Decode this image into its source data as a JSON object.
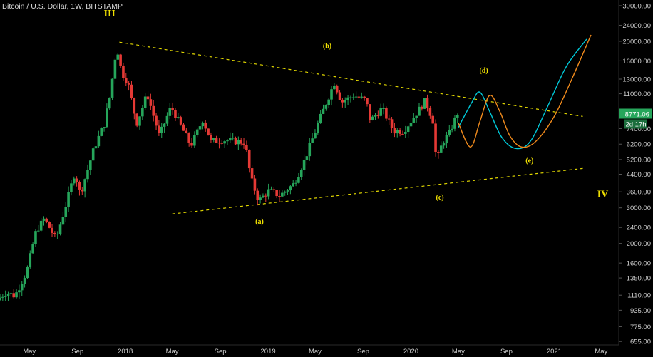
{
  "header": {
    "title": "Bitcoin / U.S. Dollar, 1W, BITSTAMP"
  },
  "colors": {
    "background": "#000000",
    "candle_up": "#26a65b",
    "candle_down": "#e53935",
    "trendline": "#e0d600",
    "wave_label": "#f0e000",
    "projection_cyan": "#00c8d8",
    "projection_orange": "#f08a1c",
    "price_badge": "#26a65b"
  },
  "price_badge": {
    "price": "8771.06",
    "countdown": "2d 17h"
  },
  "chart_data": {
    "type": "candlestick",
    "title": "Bitcoin / U.S. Dollar, 1W, BITSTAMP",
    "y_scale": "log",
    "ylim": [
      630,
      32000
    ],
    "xlim": [
      "2017-02-15",
      "2021-06-15"
    ],
    "x_ticks": [
      {
        "date": "2017-05-01",
        "label": "May"
      },
      {
        "date": "2017-09-01",
        "label": "Sep"
      },
      {
        "date": "2018-01-01",
        "label": "2018"
      },
      {
        "date": "2018-05-01",
        "label": "May"
      },
      {
        "date": "2018-09-01",
        "label": "Sep"
      },
      {
        "date": "2019-01-01",
        "label": "2019"
      },
      {
        "date": "2019-05-01",
        "label": "May"
      },
      {
        "date": "2019-09-01",
        "label": "Sep"
      },
      {
        "date": "2020-01-01",
        "label": "2020"
      },
      {
        "date": "2020-05-01",
        "label": "May"
      },
      {
        "date": "2020-09-01",
        "label": "Sep"
      },
      {
        "date": "2021-01-01",
        "label": "2021"
      },
      {
        "date": "2021-05-01",
        "label": "May"
      }
    ],
    "y_ticks": [
      "30000.00",
      "24000.00",
      "20000.00",
      "16000.00",
      "13000.00",
      "11000.00",
      "7400.00",
      "6200.00",
      "5200.00",
      "4400.00",
      "3600.00",
      "3000.00",
      "2400.00",
      "2000.00",
      "1600.00",
      "1350.00",
      "1110.00",
      "935.00",
      "775.00",
      "655.00"
    ],
    "price_path": [
      {
        "x": "2017-02-15",
        "y": 1050
      },
      {
        "x": "2017-03-10",
        "y": 1150
      },
      {
        "x": "2017-04-01",
        "y": 1100
      },
      {
        "x": "2017-05-01",
        "y": 1450
      },
      {
        "x": "2017-05-25",
        "y": 2300
      },
      {
        "x": "2017-06-15",
        "y": 2650
      },
      {
        "x": "2017-07-15",
        "y": 2100
      },
      {
        "x": "2017-08-05",
        "y": 2900
      },
      {
        "x": "2017-09-01",
        "y": 4500
      },
      {
        "x": "2017-09-15",
        "y": 3500
      },
      {
        "x": "2017-10-20",
        "y": 5900
      },
      {
        "x": "2017-11-15",
        "y": 7800
      },
      {
        "x": "2017-12-01",
        "y": 11000
      },
      {
        "x": "2017-12-17",
        "y": 19000
      },
      {
        "x": "2017-12-30",
        "y": 14000
      },
      {
        "x": "2018-01-15",
        "y": 12500
      },
      {
        "x": "2018-02-06",
        "y": 7800
      },
      {
        "x": "2018-03-05",
        "y": 11000
      },
      {
        "x": "2018-04-05",
        "y": 6800
      },
      {
        "x": "2018-05-05",
        "y": 9500
      },
      {
        "x": "2018-06-25",
        "y": 6100
      },
      {
        "x": "2018-07-25",
        "y": 8200
      },
      {
        "x": "2018-08-15",
        "y": 6400
      },
      {
        "x": "2018-09-15",
        "y": 6500
      },
      {
        "x": "2018-10-20",
        "y": 6400
      },
      {
        "x": "2018-11-10",
        "y": 6300
      },
      {
        "x": "2018-11-25",
        "y": 4200
      },
      {
        "x": "2018-12-15",
        "y": 3250
      },
      {
        "x": "2019-01-10",
        "y": 3650
      },
      {
        "x": "2019-02-07",
        "y": 3450
      },
      {
        "x": "2019-03-15",
        "y": 3950
      },
      {
        "x": "2019-04-10",
        "y": 5100
      },
      {
        "x": "2019-05-15",
        "y": 7800
      },
      {
        "x": "2019-06-26",
        "y": 12500
      },
      {
        "x": "2019-07-15",
        "y": 10000
      },
      {
        "x": "2019-08-15",
        "y": 10800
      },
      {
        "x": "2019-09-15",
        "y": 10200
      },
      {
        "x": "2019-09-26",
        "y": 8100
      },
      {
        "x": "2019-10-26",
        "y": 9300
      },
      {
        "x": "2019-11-25",
        "y": 7200
      },
      {
        "x": "2019-12-20",
        "y": 7200
      },
      {
        "x": "2020-01-20",
        "y": 8700
      },
      {
        "x": "2020-02-14",
        "y": 10200
      },
      {
        "x": "2020-03-05",
        "y": 8000
      },
      {
        "x": "2020-03-13",
        "y": 5000
      },
      {
        "x": "2020-03-28",
        "y": 6300
      },
      {
        "x": "2020-04-15",
        "y": 7000
      },
      {
        "x": "2020-05-05",
        "y": 8771
      }
    ],
    "trendlines": [
      {
        "name": "upper",
        "from": {
          "x": "2017-12-17",
          "y": 19800
        },
        "to": {
          "x": "2021-03-15",
          "y": 8500
        }
      },
      {
        "name": "lower",
        "from": {
          "x": "2018-05-01",
          "y": 2800
        },
        "to": {
          "x": "2021-03-15",
          "y": 4700
        }
      }
    ],
    "projections": [
      {
        "color": "#00c8d8",
        "points": [
          {
            "x": "2020-05-01",
            "y": 7500
          },
          {
            "x": "2020-06-05",
            "y": 10000
          },
          {
            "x": "2020-06-25",
            "y": 11200
          },
          {
            "x": "2020-07-20",
            "y": 9000
          },
          {
            "x": "2020-08-20",
            "y": 6700
          },
          {
            "x": "2020-09-25",
            "y": 5900
          },
          {
            "x": "2020-11-01",
            "y": 6400
          },
          {
            "x": "2020-12-15",
            "y": 9500
          },
          {
            "x": "2021-02-01",
            "y": 15000
          },
          {
            "x": "2021-03-25",
            "y": 20500
          }
        ]
      },
      {
        "color": "#f08a1c",
        "points": [
          {
            "x": "2020-05-01",
            "y": 7900
          },
          {
            "x": "2020-06-01",
            "y": 6000
          },
          {
            "x": "2020-06-25",
            "y": 8000
          },
          {
            "x": "2020-07-20",
            "y": 10800
          },
          {
            "x": "2020-08-15",
            "y": 9000
          },
          {
            "x": "2020-09-10",
            "y": 6800
          },
          {
            "x": "2020-10-10",
            "y": 6000
          },
          {
            "x": "2020-11-15",
            "y": 6400
          },
          {
            "x": "2021-01-01",
            "y": 8500
          },
          {
            "x": "2021-02-15",
            "y": 13000
          },
          {
            "x": "2021-04-05",
            "y": 21500
          }
        ]
      }
    ],
    "annotations": [
      {
        "text": "III",
        "x": "2017-11-22",
        "y": 26500,
        "size": "large"
      },
      {
        "text": "(b)",
        "x": "2019-06-01",
        "y": 18500,
        "size": "small"
      },
      {
        "text": "(d)",
        "x": "2020-07-05",
        "y": 14000,
        "size": "small"
      },
      {
        "text": "(e)",
        "x": "2020-10-30",
        "y": 5000,
        "size": "small"
      },
      {
        "text": "(c)",
        "x": "2020-03-15",
        "y": 3300,
        "size": "small"
      },
      {
        "text": "(a)",
        "x": "2018-12-10",
        "y": 2500,
        "size": "small"
      },
      {
        "text": "IV",
        "x": "2021-05-05",
        "y": 3400,
        "size": "large"
      }
    ]
  }
}
